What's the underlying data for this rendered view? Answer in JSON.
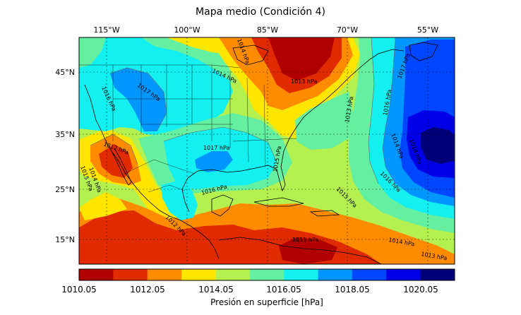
{
  "title": "Mapa medio (Condición 4)",
  "longitude_labels": [
    "115°W",
    "100°W",
    "85°W",
    "70°W",
    "55°W"
  ],
  "latitude_labels": [
    "45°N",
    "35°N",
    "25°N",
    "15°N"
  ],
  "isobar_labels": [
    "1017 hPa",
    "1016 hPa",
    "1014 hPa",
    "1014 hPa",
    "1013 hPa",
    "1013 hPa",
    "1017 hPa",
    "1016 hPa",
    "1014 hPa",
    "1014 hPa",
    "1012 hPa",
    "1015 hPa",
    "1014 hPa",
    "1017 hPa",
    "1016 hPa",
    "1015 hPa",
    "1015 hPa",
    "1016 hPa",
    "1012 hPa",
    "1011 hPa",
    "1014 hPa",
    "1013 hPa"
  ],
  "colorbar": {
    "label": "Presión en superficie [hPa]",
    "tick_labels": [
      "1010.05",
      "1012.05",
      "1014.05",
      "1016.05",
      "1018.05",
      "1020.05"
    ],
    "colors": [
      "#b00000",
      "#e02a00",
      "#ff8c00",
      "#ffe600",
      "#b4f050",
      "#64f0a0",
      "#14f0f0",
      "#0096ff",
      "#0046ff",
      "#0000e6",
      "#000078"
    ]
  },
  "legend_text": []
}
